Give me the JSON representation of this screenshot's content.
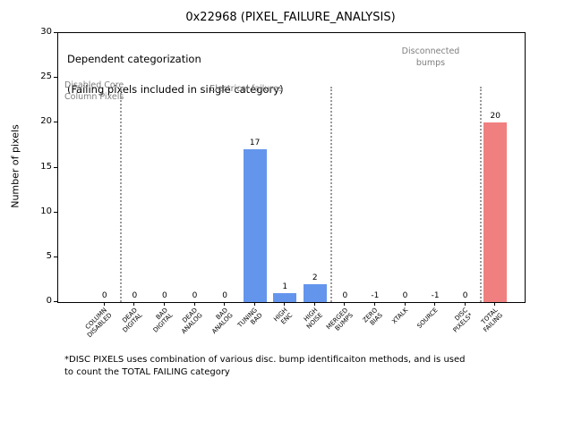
{
  "figure": {
    "title": "0x22968 (PIXEL_FAILURE_ANALYSIS)",
    "ylabel": "Number of pixels",
    "footnote": "*DISC PIXELS uses combination of various disc. bump identificaiton methods, and is used\nto count the TOTAL FAILING category"
  },
  "annotations": {
    "dependent_line1": "Dependent categorization",
    "dependent_line2": "(Failing pixels included in single category)",
    "disabled_core": "Disabled Core\nColumn Pixels",
    "electrical": "Electrical failures",
    "disconnected": "Disconnected\nbumps"
  },
  "chart_data": {
    "type": "bar",
    "title": "0x22968 (PIXEL_FAILURE_ANALYSIS)",
    "xlabel": "",
    "ylabel": "Number of pixels",
    "ylim": [
      0,
      30
    ],
    "yticks": [
      0,
      5,
      10,
      15,
      20,
      25,
      30
    ],
    "grid": false,
    "legend": "none",
    "categories": [
      "COLUMN\nDISABLED",
      "DEAD\nDIGITAL",
      "BAD\nDIGITAL",
      "DEAD\nANALOG",
      "BAD\nANALOG",
      "TUNING\nBAD",
      "HIGH\nENC",
      "HIGH\nNOISE",
      "MERGED\nBUMPS",
      "ZERO\nBIAS",
      "XTALK",
      "SOURCE",
      "DISC\nPIXELS*",
      "TOTAL\nFAILING"
    ],
    "values": [
      0,
      0,
      0,
      0,
      0,
      17,
      1,
      2,
      0,
      -1,
      0,
      -1,
      0,
      20
    ],
    "bar_colors": [
      "#6495ed",
      "#6495ed",
      "#6495ed",
      "#6495ed",
      "#6495ed",
      "#6495ed",
      "#6495ed",
      "#6495ed",
      "#6495ed",
      "#6495ed",
      "#6495ed",
      "#6495ed",
      "#6495ed",
      "#f08080"
    ],
    "section_separators": [
      0.5,
      7.5,
      12.5
    ],
    "separator_top_value": 24,
    "separator_color": "#9a9a9a",
    "annotation_gray": "#7f7f7f"
  }
}
